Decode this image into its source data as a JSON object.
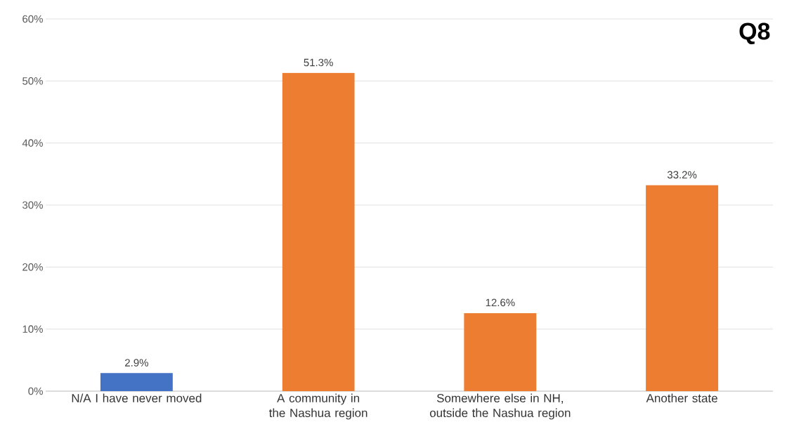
{
  "chart_data": {
    "type": "bar",
    "title": "Q8",
    "categories": [
      "N/A I have never moved",
      "A community in the Nashua region",
      "Somewhere else in NH, outside the Nashua region",
      "Another state"
    ],
    "values": [
      2.9,
      51.3,
      12.6,
      33.2
    ],
    "colors": [
      "#4472c4",
      "#ed7d31",
      "#ed7d31",
      "#ed7d31"
    ],
    "value_labels": [
      "2.9%",
      "51.3%",
      "12.6%",
      "33.2%"
    ],
    "ylim": [
      0,
      60
    ],
    "yticks": [
      {
        "value": 0,
        "label": "0%"
      },
      {
        "value": 10,
        "label": "10%"
      },
      {
        "value": 20,
        "label": "20%"
      },
      {
        "value": 30,
        "label": "30%"
      },
      {
        "value": 40,
        "label": "40%"
      },
      {
        "value": 50,
        "label": "50%"
      },
      {
        "value": 60,
        "label": "60%"
      }
    ],
    "grid": "y"
  }
}
